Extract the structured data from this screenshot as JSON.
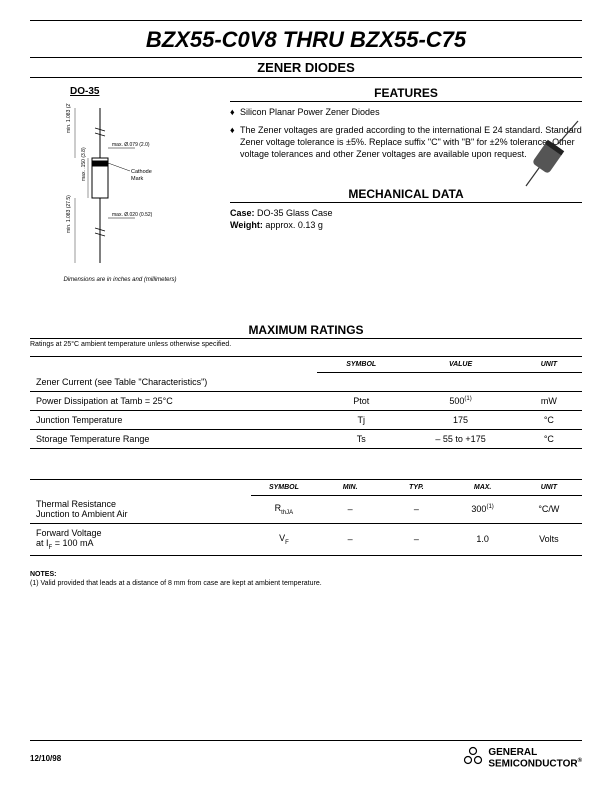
{
  "title": "BZX55-C0V8 THRU BZX55-C75",
  "subtitle": "ZENER DIODES",
  "package_label": "DO-35",
  "diagram": {
    "dim_top": "max. Ø.079 (2.0)",
    "dim_bot": "max. Ø.020 (0.52)",
    "lead_upper": "min. 1.083 (27.5)",
    "body": "max. .150 (3.8)",
    "lead_lower": "min. 1.083 (27.5)",
    "cathode": "Cathode Mark"
  },
  "dimensions_note": "Dimensions are in inches and (millimeters)",
  "features": {
    "heading": "FEATURES",
    "items": [
      "Silicon Planar Power Zener Diodes",
      "The Zener voltages are graded according to the international E 24 standard. Standard Zener voltage tolerance is ±5%. Replace suffix \"C\" with \"B\" for ±2% tolerance. Other voltage tolerances and other Zener voltages are available upon request."
    ]
  },
  "mechanical": {
    "heading": "MECHANICAL DATA",
    "case_label": "Case:",
    "case_value": "DO-35 Glass Case",
    "weight_label": "Weight:",
    "weight_value": "approx. 0.13 g"
  },
  "max_ratings": {
    "heading": "MAXIMUM RATINGS",
    "note": "Ratings at 25°C ambient temperature unless otherwise specified.",
    "headers": [
      "",
      "SYMBOL",
      "VALUE",
      "UNIT"
    ],
    "rows": [
      [
        "Zener Current (see Table \"Characteristics\")",
        "",
        "",
        ""
      ],
      [
        "Power Dissipation at Tamb = 25°C",
        "Ptot",
        "500(1)",
        "mW"
      ],
      [
        "Junction Temperature",
        "Tj",
        "175",
        "°C"
      ],
      [
        "Storage Temperature Range",
        "Ts",
        "– 55 to +175",
        "°C"
      ]
    ]
  },
  "thermal": {
    "headers": [
      "",
      "SYMBOL",
      "MIN.",
      "TYP.",
      "MAX.",
      "UNIT"
    ],
    "rows": [
      [
        "Thermal Resistance\nJunction to Ambient Air",
        "RthJA",
        "–",
        "–",
        "300(1)",
        "°C/W"
      ],
      [
        "Forward Voltage\nat IF = 100 mA",
        "VF",
        "–",
        "–",
        "1.0",
        "Volts"
      ]
    ]
  },
  "notes": {
    "heading": "NOTES:",
    "text": "(1) Valid provided that leads at a distance of 8 mm from case are kept at ambient temperature."
  },
  "footer_date": "12/10/98",
  "logo_text1": "GENERAL",
  "logo_text2": "SEMICONDUCTOR",
  "reg": "®"
}
